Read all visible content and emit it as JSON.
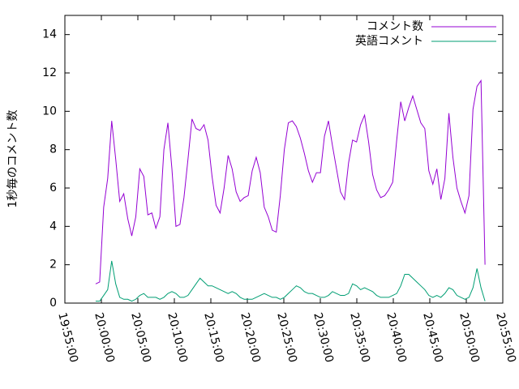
{
  "chart_data": {
    "type": "line",
    "y_label": "1秒毎のコメント数",
    "x": [
      "19:59:13",
      "19:59:46",
      "20:00:19",
      "20:00:52",
      "20:01:25",
      "20:01:58",
      "20:02:31",
      "20:03:04",
      "20:03:37",
      "20:04:10",
      "20:04:43",
      "20:05:16",
      "20:05:49",
      "20:06:22",
      "20:06:55",
      "20:07:28",
      "20:08:01",
      "20:08:34",
      "20:09:07",
      "20:09:40",
      "20:10:13",
      "20:10:46",
      "20:11:19",
      "20:11:52",
      "20:12:25",
      "20:12:58",
      "20:13:31",
      "20:14:04",
      "20:14:37",
      "20:15:10",
      "20:15:43",
      "20:16:16",
      "20:16:49",
      "20:17:22",
      "20:17:55",
      "20:18:28",
      "20:19:01",
      "20:19:34",
      "20:20:07",
      "20:20:40",
      "20:21:13",
      "20:21:46",
      "20:22:19",
      "20:22:52",
      "20:23:25",
      "20:23:58",
      "20:24:31",
      "20:25:04",
      "20:25:37",
      "20:26:10",
      "20:26:43",
      "20:27:16",
      "20:27:49",
      "20:28:22",
      "20:28:55",
      "20:29:28",
      "20:30:01",
      "20:30:34",
      "20:31:07",
      "20:31:40",
      "20:32:13",
      "20:32:46",
      "20:33:19",
      "20:33:52",
      "20:34:25",
      "20:34:58",
      "20:35:31",
      "20:36:04",
      "20:36:37",
      "20:37:10",
      "20:37:43",
      "20:38:16",
      "20:38:49",
      "20:39:22",
      "20:39:55",
      "20:40:28",
      "20:41:01",
      "20:41:34",
      "20:42:07",
      "20:42:40",
      "20:43:13",
      "20:43:46",
      "20:44:19",
      "20:44:52",
      "20:45:25",
      "20:45:58",
      "20:46:31",
      "20:47:04",
      "20:47:37",
      "20:48:10",
      "20:48:43",
      "20:49:16",
      "20:49:49",
      "20:50:22",
      "20:50:55",
      "20:51:28",
      "20:52:01",
      "20:52:34"
    ],
    "series": [
      {
        "name": "コメント数",
        "color": "#9400d3",
        "values": [
          1.0,
          1.1,
          5.0,
          6.5,
          9.5,
          7.5,
          5.3,
          5.7,
          4.4,
          3.5,
          4.5,
          7.0,
          6.6,
          4.6,
          4.7,
          3.9,
          4.5,
          8.0,
          9.4,
          7.0,
          4.0,
          4.1,
          5.5,
          7.5,
          9.6,
          9.1,
          9.0,
          9.3,
          8.5,
          6.6,
          5.1,
          4.7,
          6.0,
          7.7,
          7.0,
          5.8,
          5.3,
          5.5,
          5.6,
          6.9,
          7.6,
          6.8,
          5.0,
          4.5,
          3.8,
          3.7,
          5.6,
          8.0,
          9.4,
          9.5,
          9.2,
          8.6,
          7.8,
          6.9,
          6.3,
          6.8,
          6.8,
          8.7,
          9.5,
          8.2,
          7.0,
          5.8,
          5.4,
          7.3,
          8.5,
          8.4,
          9.3,
          9.8,
          8.4,
          6.7,
          5.9,
          5.5,
          5.6,
          5.9,
          6.3,
          8.5,
          10.5,
          9.5,
          10.2,
          10.8,
          10.1,
          9.4,
          9.1,
          6.9,
          6.2,
          7.0,
          5.4,
          6.5,
          9.9,
          7.6,
          6.0,
          5.3,
          4.7,
          5.6,
          10.1,
          11.3,
          11.6,
          2.0
        ]
      },
      {
        "name": "英語コメント",
        "color": "#009e73",
        "values": [
          0.1,
          0.1,
          0.4,
          0.7,
          2.2,
          1.0,
          0.3,
          0.2,
          0.2,
          0.1,
          0.2,
          0.4,
          0.5,
          0.3,
          0.3,
          0.3,
          0.2,
          0.3,
          0.5,
          0.6,
          0.5,
          0.3,
          0.3,
          0.4,
          0.7,
          1.0,
          1.3,
          1.1,
          0.9,
          0.9,
          0.8,
          0.7,
          0.6,
          0.5,
          0.6,
          0.5,
          0.3,
          0.2,
          0.2,
          0.2,
          0.3,
          0.4,
          0.5,
          0.4,
          0.3,
          0.3,
          0.2,
          0.3,
          0.5,
          0.7,
          0.9,
          0.8,
          0.6,
          0.5,
          0.5,
          0.4,
          0.3,
          0.3,
          0.4,
          0.6,
          0.5,
          0.4,
          0.4,
          0.5,
          1.0,
          0.9,
          0.7,
          0.8,
          0.7,
          0.6,
          0.4,
          0.3,
          0.3,
          0.3,
          0.4,
          0.5,
          0.9,
          1.5,
          1.5,
          1.3,
          1.1,
          0.9,
          0.7,
          0.4,
          0.3,
          0.4,
          0.3,
          0.5,
          0.8,
          0.7,
          0.4,
          0.3,
          0.2,
          0.3,
          0.8,
          1.8,
          0.8,
          0.1
        ]
      }
    ],
    "xlim": [
      "19:55:00",
      "20:55:00"
    ],
    "xticks": [
      "19:55:00",
      "20:00:00",
      "20:05:00",
      "20:10:00",
      "20:15:00",
      "20:20:00",
      "20:25:00",
      "20:30:00",
      "20:35:00",
      "20:40:00",
      "20:45:00",
      "20:50:00",
      "20:55:00"
    ],
    "ylim": [
      0,
      15
    ],
    "yticks": [
      0,
      2,
      4,
      6,
      8,
      10,
      12,
      14
    ],
    "legend": "top-right"
  }
}
